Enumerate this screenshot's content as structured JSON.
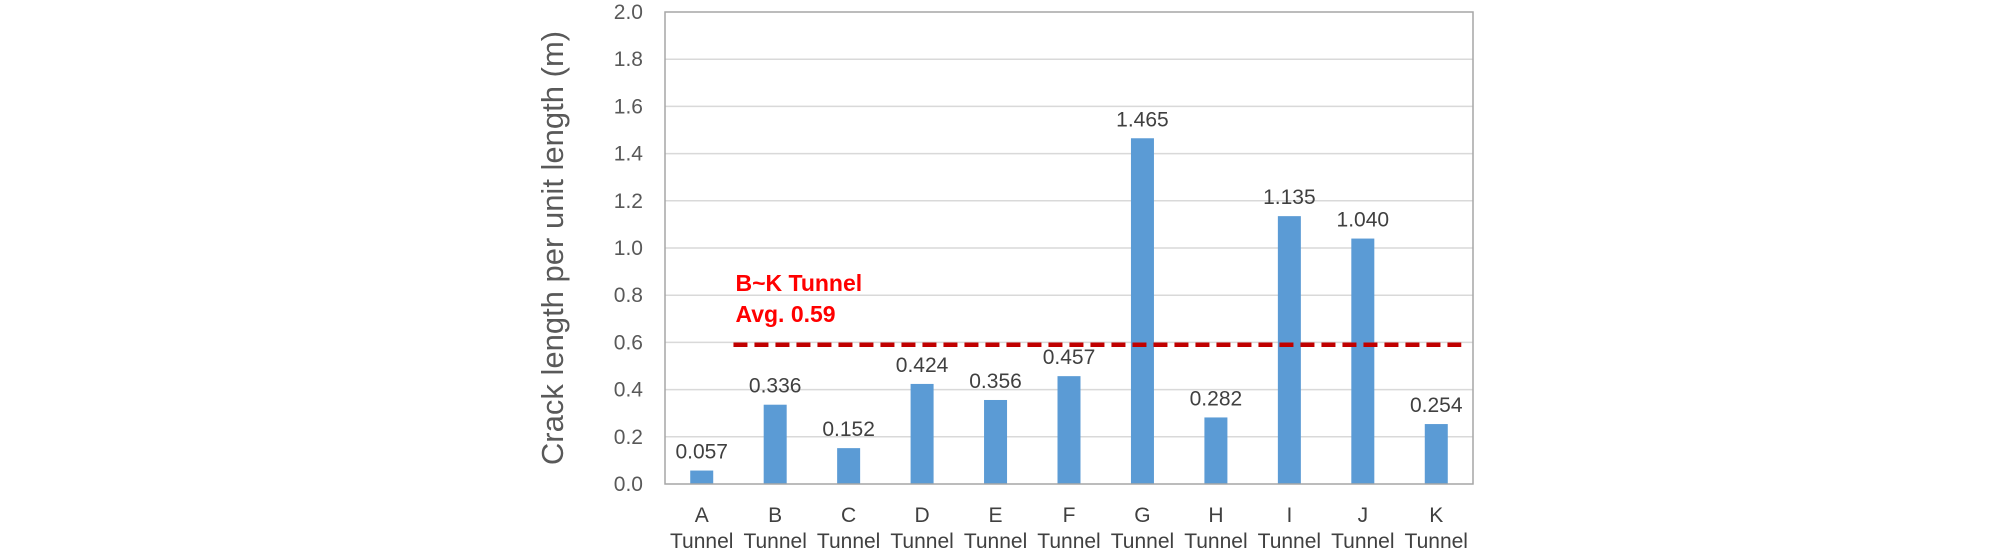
{
  "chart_data": {
    "type": "bar",
    "ylabel": "Crack length per unit length (m)",
    "ylim": [
      0,
      2.0
    ],
    "ytick_step": 0.2,
    "ytick_labels": [
      "0.0",
      "0.2",
      "0.4",
      "0.6",
      "0.8",
      "1.0",
      "1.2",
      "1.4",
      "1.6",
      "1.8",
      "2.0"
    ],
    "grid": true,
    "categories": [
      {
        "top": "A",
        "bottom": "Tunnel"
      },
      {
        "top": "B",
        "bottom": "Tunnel"
      },
      {
        "top": "C",
        "bottom": "Tunnel"
      },
      {
        "top": "D",
        "bottom": "Tunnel"
      },
      {
        "top": "E",
        "bottom": "Tunnel"
      },
      {
        "top": "F",
        "bottom": "Tunnel"
      },
      {
        "top": "G",
        "bottom": "Tunnel"
      },
      {
        "top": "H",
        "bottom": "Tunnel"
      },
      {
        "top": "I",
        "bottom": "Tunnel"
      },
      {
        "top": "J",
        "bottom": "Tunnel"
      },
      {
        "top": "K",
        "bottom": "Tunnel"
      }
    ],
    "values": [
      0.057,
      0.336,
      0.152,
      0.424,
      0.356,
      0.457,
      1.465,
      0.282,
      1.135,
      1.04,
      0.254
    ],
    "value_labels": [
      "0.057",
      "0.336",
      "0.152",
      "0.424",
      "0.356",
      "0.457",
      "1.465",
      "0.282",
      "1.135",
      "1.040",
      "0.254"
    ],
    "bar_color": "#5b9bd5",
    "average_line": {
      "value": 0.59,
      "label_line1": "B~K Tunnel",
      "label_line2": "Avg. 0.59",
      "color": "#c00000",
      "style": "dashed"
    }
  }
}
